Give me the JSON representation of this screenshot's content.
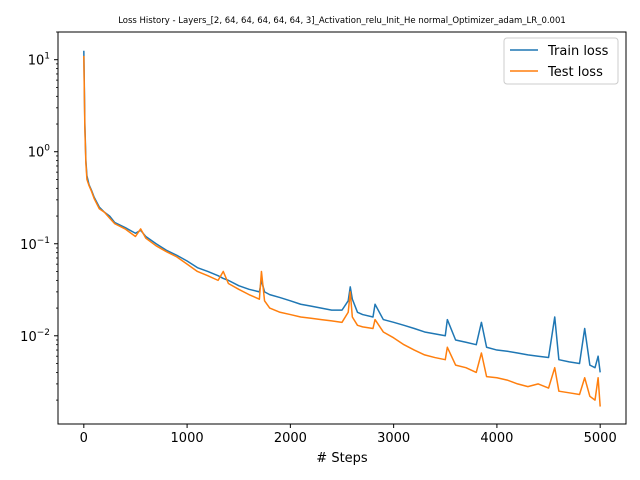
{
  "chart_data": {
    "type": "line",
    "title": "Loss History - Layers_[2, 64, 64, 64, 64, 64, 3]_Activation_relu_Init_He normal_Optimizer_adam_LR_0.001",
    "xlabel": "# Steps",
    "ylabel": "",
    "xlim": [
      -250,
      5250
    ],
    "ylim": [
      0.0011,
      20
    ],
    "yscale": "log",
    "grid": false,
    "legend_position": "top-right",
    "x_ticks": [
      0,
      1000,
      2000,
      3000,
      4000,
      5000
    ],
    "x_tick_labels": [
      "0",
      "1000",
      "2000",
      "3000",
      "4000",
      "5000"
    ],
    "y_ticks": [
      0.01,
      0.1,
      1,
      10
    ],
    "y_tick_labels": [
      "10^-2",
      "10^-1",
      "10^0",
      "10^1"
    ],
    "series": [
      {
        "name": "Train loss",
        "color": "#1f77b4",
        "x": [
          0,
          10,
          20,
          30,
          50,
          75,
          100,
          150,
          200,
          250,
          300,
          400,
          500,
          550,
          600,
          700,
          800,
          900,
          1000,
          1100,
          1200,
          1300,
          1350,
          1400,
          1500,
          1600,
          1700,
          1720,
          1750,
          1800,
          1900,
          2000,
          2100,
          2200,
          2300,
          2400,
          2500,
          2560,
          2580,
          2600,
          2650,
          2700,
          2800,
          2820,
          2900,
          3000,
          3100,
          3200,
          3300,
          3400,
          3500,
          3520,
          3600,
          3700,
          3800,
          3850,
          3900,
          4000,
          4100,
          4200,
          4300,
          4400,
          4500,
          4560,
          4600,
          4700,
          4800,
          4850,
          4900,
          4950,
          4980,
          5000
        ],
        "y": [
          12.5,
          2.0,
          0.8,
          0.55,
          0.44,
          0.38,
          0.32,
          0.25,
          0.22,
          0.2,
          0.17,
          0.15,
          0.13,
          0.14,
          0.12,
          0.1,
          0.085,
          0.075,
          0.065,
          0.055,
          0.05,
          0.045,
          0.042,
          0.04,
          0.035,
          0.032,
          0.03,
          0.04,
          0.03,
          0.028,
          0.026,
          0.024,
          0.022,
          0.021,
          0.02,
          0.019,
          0.019,
          0.024,
          0.034,
          0.025,
          0.018,
          0.017,
          0.016,
          0.022,
          0.015,
          0.014,
          0.013,
          0.012,
          0.011,
          0.0105,
          0.01,
          0.015,
          0.009,
          0.0085,
          0.008,
          0.014,
          0.0075,
          0.007,
          0.0068,
          0.0065,
          0.0062,
          0.006,
          0.0058,
          0.016,
          0.0055,
          0.0052,
          0.005,
          0.012,
          0.0048,
          0.0045,
          0.006,
          0.004
        ]
      },
      {
        "name": "Test loss",
        "color": "#ff7f0e",
        "x": [
          0,
          10,
          20,
          30,
          50,
          75,
          100,
          150,
          200,
          250,
          300,
          400,
          500,
          550,
          600,
          700,
          800,
          900,
          1000,
          1100,
          1200,
          1300,
          1350,
          1400,
          1500,
          1600,
          1700,
          1720,
          1750,
          1800,
          1900,
          2000,
          2100,
          2200,
          2300,
          2400,
          2500,
          2560,
          2580,
          2600,
          2650,
          2700,
          2800,
          2820,
          2900,
          3000,
          3100,
          3200,
          3300,
          3400,
          3500,
          3520,
          3600,
          3700,
          3800,
          3850,
          3900,
          4000,
          4100,
          4200,
          4300,
          4400,
          4500,
          4560,
          4600,
          4700,
          4800,
          4850,
          4900,
          4950,
          4980,
          5000
        ],
        "y": [
          11.0,
          1.8,
          0.75,
          0.5,
          0.43,
          0.37,
          0.31,
          0.24,
          0.22,
          0.19,
          0.165,
          0.145,
          0.12,
          0.145,
          0.115,
          0.095,
          0.082,
          0.072,
          0.06,
          0.05,
          0.045,
          0.04,
          0.05,
          0.037,
          0.032,
          0.028,
          0.025,
          0.05,
          0.024,
          0.02,
          0.018,
          0.017,
          0.016,
          0.0155,
          0.015,
          0.0145,
          0.014,
          0.018,
          0.03,
          0.016,
          0.013,
          0.0125,
          0.012,
          0.015,
          0.011,
          0.0095,
          0.008,
          0.007,
          0.0062,
          0.0058,
          0.0055,
          0.0075,
          0.0048,
          0.0045,
          0.004,
          0.0065,
          0.0036,
          0.0035,
          0.0033,
          0.003,
          0.0028,
          0.003,
          0.0027,
          0.0045,
          0.0025,
          0.0024,
          0.0023,
          0.0035,
          0.0022,
          0.002,
          0.0035,
          0.0017
        ]
      }
    ]
  }
}
